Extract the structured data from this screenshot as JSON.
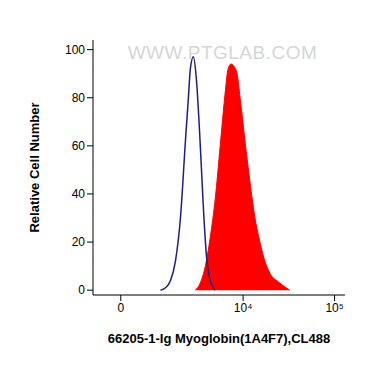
{
  "chart_data": {
    "type": "line",
    "xlabel": "66205-1-Ig Myoglobin(1A4F7),CL488",
    "ylabel": "Relative Cell Number",
    "annotations": [
      "WWW.PTGLAB.COM"
    ],
    "xlim": [
      -700,
      130000
    ],
    "xticks": [
      0,
      {
        "value": 10000,
        "label": "10⁴"
      },
      {
        "value": 100000,
        "label": "10⁵"
      }
    ],
    "ylim": [
      -2,
      104
    ],
    "yticks": [
      0,
      20,
      40,
      60,
      80,
      100
    ],
    "grid": false,
    "series": [
      {
        "type": "area",
        "color": "#ff0000",
        "x": [
          2940,
          3355,
          3820,
          4340,
          4930,
          5600,
          6350,
          6840,
          7380,
          7960,
          8590,
          9270,
          10500,
          11900,
          13500,
          15300,
          17350,
          19700,
          25200,
          32400
        ],
        "values": [
          0,
          3,
          10,
          22,
          38,
          60,
          82,
          92,
          94,
          93,
          90,
          80,
          62,
          45,
          30,
          20,
          12,
          7,
          3,
          0
        ]
      },
      {
        "type": "line",
        "color": "#1c1c8c",
        "x": [
          1087,
          1275,
          1482,
          1710,
          1970,
          2260,
          2448,
          2580,
          2795,
          3023,
          3355,
          3626,
          3918,
          4340,
          4930
        ],
        "values": [
          0,
          1,
          4,
          12,
          30,
          62,
          80,
          92,
          97,
          88,
          60,
          35,
          15,
          4,
          0
        ]
      }
    ]
  }
}
